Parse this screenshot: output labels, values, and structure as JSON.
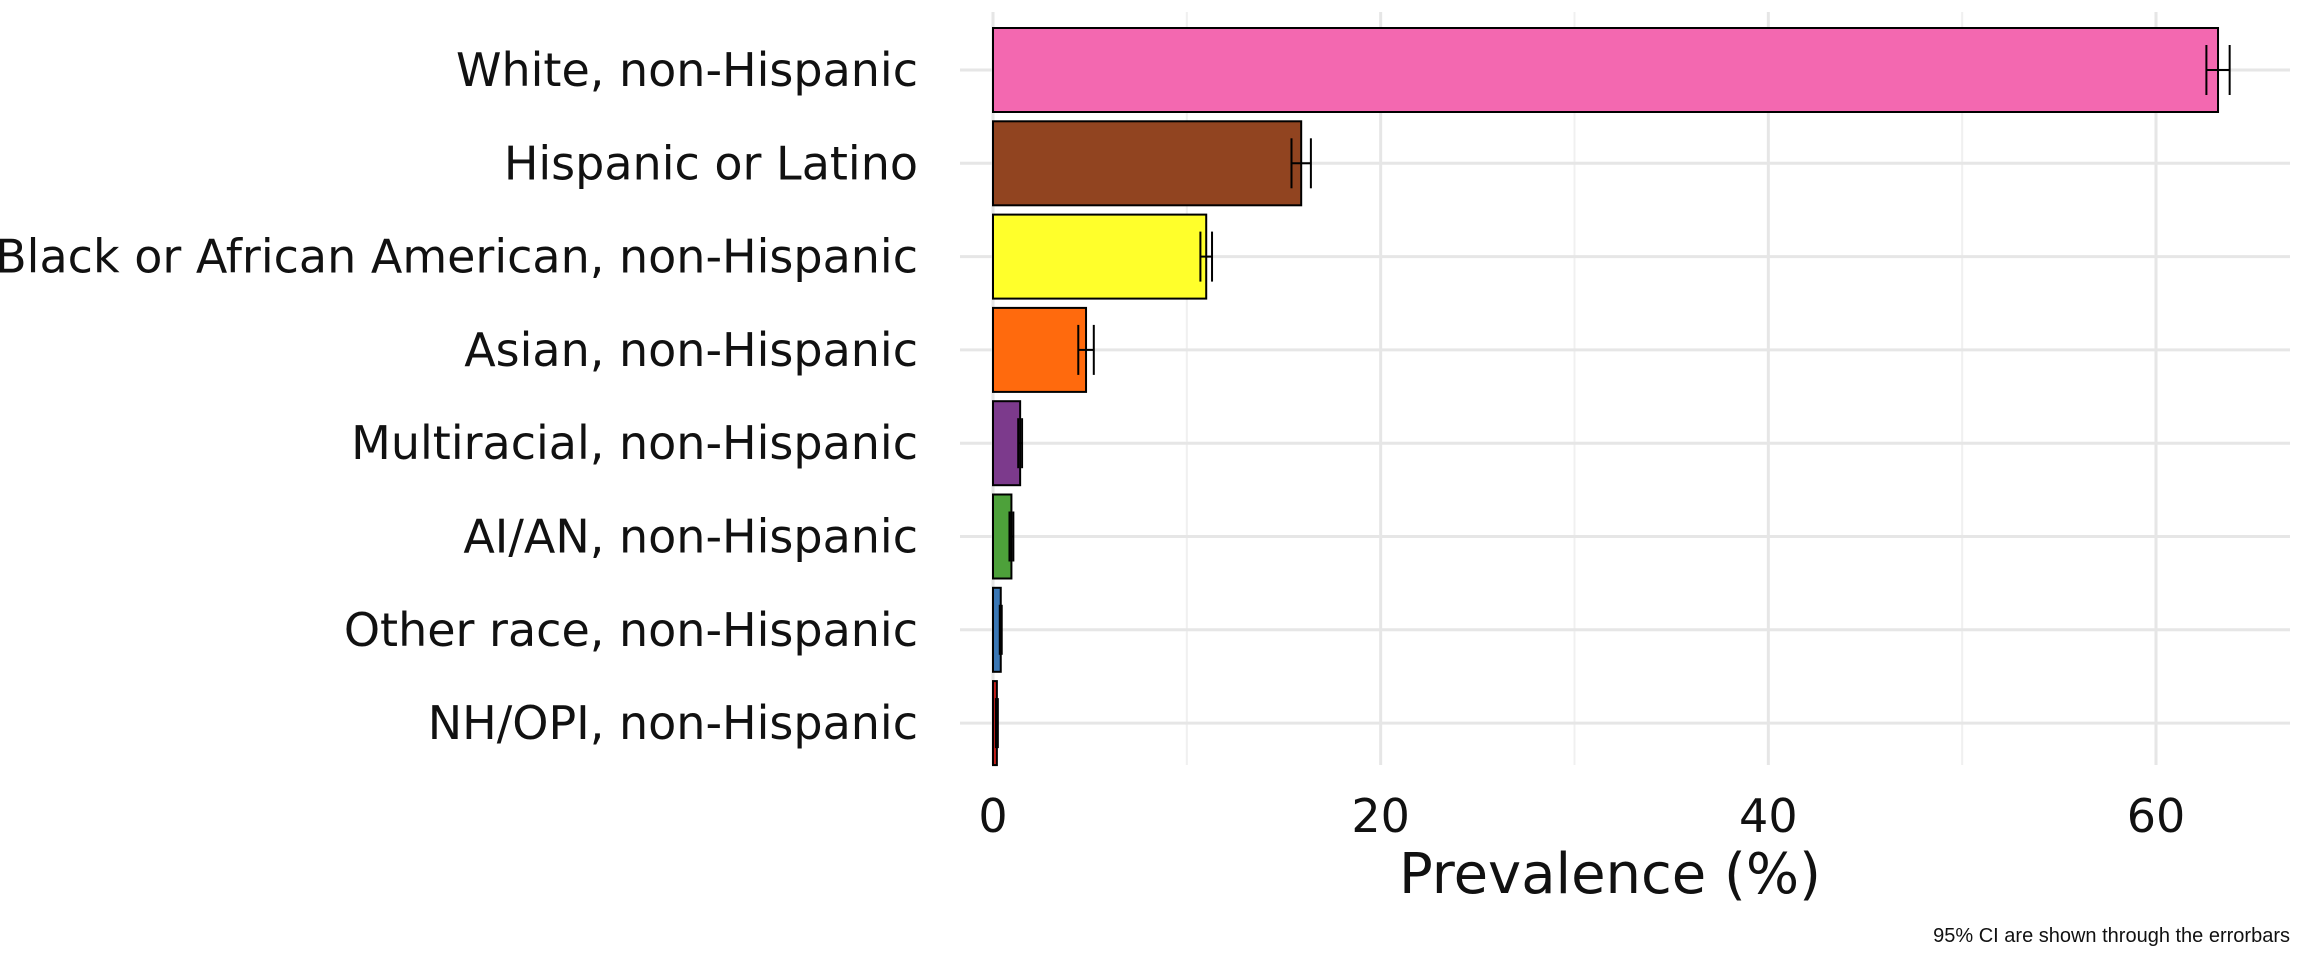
{
  "chart_data": {
    "type": "bar",
    "orientation": "horizontal",
    "categories": [
      "White, non-Hispanic",
      "Hispanic or Latino",
      "Black or African American, non-Hispanic",
      "Asian, non-Hispanic",
      "Multiracial, non-Hispanic",
      "AI/AN, non-Hispanic",
      "Other race, non-Hispanic",
      "NH/OPI, non-Hispanic"
    ],
    "values": [
      63.2,
      15.9,
      11.0,
      4.8,
      1.4,
      0.95,
      0.4,
      0.2
    ],
    "ci_low": [
      62.6,
      15.4,
      10.7,
      4.4,
      1.3,
      0.85,
      0.35,
      0.15
    ],
    "ci_high": [
      63.8,
      16.4,
      11.3,
      5.2,
      1.5,
      1.05,
      0.45,
      0.25
    ],
    "colors": [
      "#F368B0",
      "#914420",
      "#FFFF2B",
      "#FF6A0D",
      "#7C3A8C",
      "#4DA13A",
      "#3A77B5",
      "#C8201D"
    ],
    "xlabel": "Prevalence (%)",
    "ylabel": "",
    "xlim": [
      -2.5,
      67
    ],
    "x_ticks": [
      0,
      20,
      40,
      60
    ],
    "grid": true,
    "legend": "none",
    "caption": "95% CI are shown through the errorbars"
  }
}
